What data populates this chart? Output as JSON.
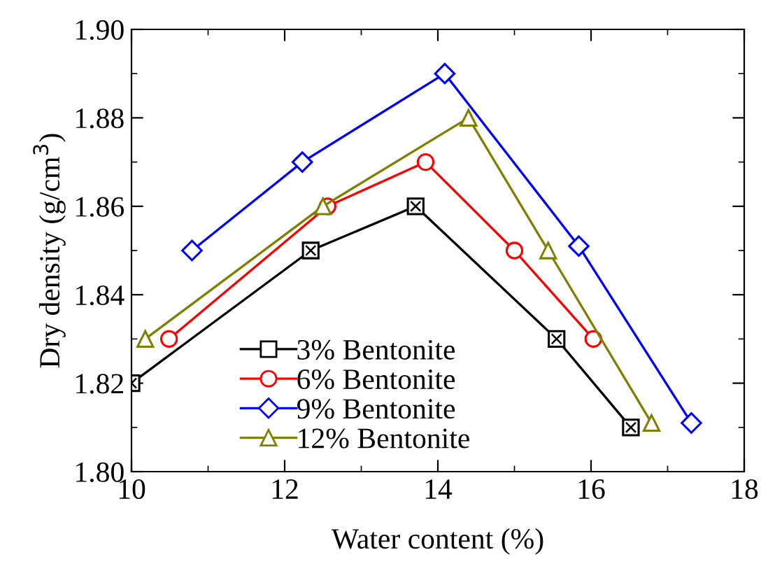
{
  "chart_data": {
    "type": "line",
    "xlabel": "Water content (%)",
    "ylabel": "Dry density (g/cm$^{3}$)",
    "xlim": [
      10,
      18
    ],
    "xticks": [
      10,
      12,
      14,
      16,
      18
    ],
    "ylim": [
      1.8,
      1.9
    ],
    "yticks": [
      {
        "value": 1.8,
        "label": "1.80"
      },
      {
        "value": 1.82,
        "label": "1.82"
      },
      {
        "value": 1.84,
        "label": "1.84"
      },
      {
        "value": 1.86,
        "label": "1.86"
      },
      {
        "value": 1.88,
        "label": "1.88"
      },
      {
        "value": 1.9,
        "label": "1.90"
      }
    ],
    "grid": false,
    "legend": "bottom",
    "line_style": "solid",
    "series": [
      {
        "name": "3% Bentonite",
        "color": "#000000",
        "marker": "square",
        "x": [
          10.0,
          12.34,
          13.71,
          15.55,
          16.52
        ],
        "values": [
          1.82,
          1.85,
          1.86,
          1.83,
          1.81
        ]
      },
      {
        "name": "6% Bentonite",
        "color": "#ff0000",
        "marker": "circle",
        "x": [
          10.49,
          12.56,
          13.84,
          15.0,
          16.03
        ],
        "values": [
          1.83,
          1.86,
          1.87,
          1.85,
          1.83
        ]
      },
      {
        "name": "9% Bentonite",
        "color": "#0000ff",
        "marker": "diamond",
        "x": [
          10.79,
          12.23,
          14.09,
          15.84,
          17.31
        ],
        "values": [
          1.85,
          1.87,
          1.89,
          1.851,
          1.811
        ]
      },
      {
        "name": "12% Bentonite",
        "color": "#808000",
        "marker": "triangle",
        "x": [
          10.18,
          12.5,
          14.4,
          15.44,
          16.79
        ],
        "values": [
          1.83,
          1.86,
          1.88,
          1.85,
          1.811
        ]
      }
    ]
  }
}
